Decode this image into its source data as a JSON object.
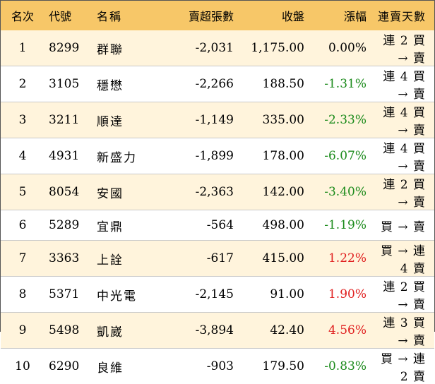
{
  "colors": {
    "header_bg": "#f7c768",
    "odd_row_bg": "#fff4dc",
    "even_row_bg": "#ffffff",
    "negative": "#1a8a1a",
    "positive": "#e02020",
    "neutral": "#000000"
  },
  "headers": [
    "名次",
    "代號",
    "名稱",
    "賣超張數",
    "收盤",
    "漲幅",
    "連賣天數"
  ],
  "rows": [
    {
      "rank": "1",
      "code": "8299",
      "name": "群聯",
      "net_sell": "-2,031",
      "close": "1,175.00",
      "change": "0.00%",
      "change_color": "#000000",
      "streak": "連 2 買 → 賣"
    },
    {
      "rank": "2",
      "code": "3105",
      "name": "穩懋",
      "net_sell": "-2,266",
      "close": "188.50",
      "change": "-1.31%",
      "change_color": "#1a8a1a",
      "streak": "連 4 買 → 賣"
    },
    {
      "rank": "3",
      "code": "3211",
      "name": "順達",
      "net_sell": "-1,149",
      "close": "335.00",
      "change": "-2.33%",
      "change_color": "#1a8a1a",
      "streak": "連 4 買 → 賣"
    },
    {
      "rank": "4",
      "code": "4931",
      "name": "新盛力",
      "net_sell": "-1,899",
      "close": "178.00",
      "change": "-6.07%",
      "change_color": "#1a8a1a",
      "streak": "連 4 買 → 賣"
    },
    {
      "rank": "5",
      "code": "8054",
      "name": "安國",
      "net_sell": "-2,363",
      "close": "142.00",
      "change": "-3.40%",
      "change_color": "#1a8a1a",
      "streak": "連 2 買 → 賣"
    },
    {
      "rank": "6",
      "code": "5289",
      "name": "宜鼎",
      "net_sell": "-564",
      "close": "498.00",
      "change": "-1.19%",
      "change_color": "#1a8a1a",
      "streak": "買 → 賣"
    },
    {
      "rank": "7",
      "code": "3363",
      "name": "上詮",
      "net_sell": "-617",
      "close": "415.00",
      "change": "1.22%",
      "change_color": "#e02020",
      "streak": "買 → 連 4 賣"
    },
    {
      "rank": "8",
      "code": "5371",
      "name": "中光電",
      "net_sell": "-2,145",
      "close": "91.00",
      "change": "1.90%",
      "change_color": "#e02020",
      "streak": "連 2 買 → 賣"
    },
    {
      "rank": "9",
      "code": "5498",
      "name": "凱崴",
      "net_sell": "-3,894",
      "close": "42.40",
      "change": "4.56%",
      "change_color": "#e02020",
      "streak": "連 3 買 → 賣"
    },
    {
      "rank": "10",
      "code": "6290",
      "name": "良維",
      "net_sell": "-903",
      "close": "179.50",
      "change": "-0.83%",
      "change_color": "#1a8a1a",
      "streak": "買 → 連 2 賣"
    }
  ]
}
